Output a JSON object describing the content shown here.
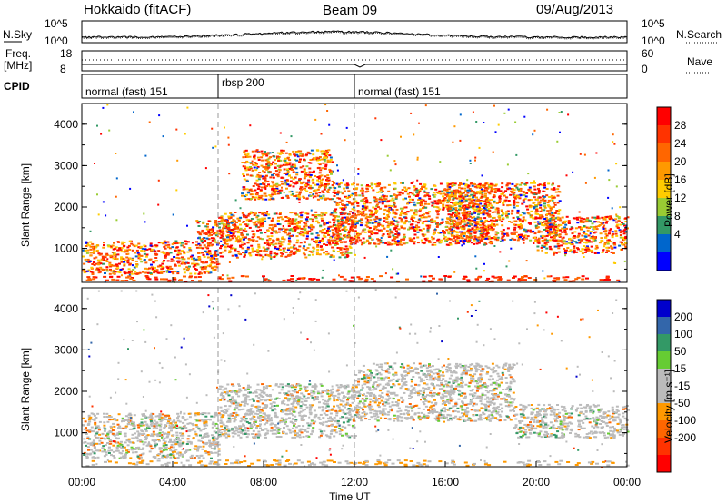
{
  "header": {
    "station": "Hokkaido (fitACF)",
    "beam": "Beam 09",
    "date": "09/Aug/2013"
  },
  "strips": {
    "noise": {
      "left_label": "N.Sky",
      "right_label": "N.Search",
      "left_ticks": [
        "10^5",
        "10^0"
      ],
      "right_ticks": [
        "10^5",
        "10^0"
      ]
    },
    "freq": {
      "left_label_1": "Freq.",
      "left_label_2": "[MHz]",
      "left_ticks": [
        "18",
        "8"
      ],
      "right_label": "Nave",
      "right_ticks": [
        "60",
        "0"
      ]
    },
    "cpid": {
      "label": "CPID",
      "segments": [
        {
          "name": "normal (fast) 151",
          "start_hour": 0
        },
        {
          "name": "rbsp 200",
          "start_hour": 6
        },
        {
          "name": "normal (fast) 151",
          "start_hour": 12
        }
      ]
    }
  },
  "axes": {
    "ylabel": "Slant Range [km]",
    "xlabel": "Time UT",
    "y_ticks": [
      "1000",
      "2000",
      "3000",
      "4000"
    ],
    "x_ticks": [
      "00:00",
      "04:00",
      "08:00",
      "12:00",
      "16:00",
      "20:00",
      "00:00"
    ]
  },
  "colorbars": {
    "power": {
      "label": "Power [dB]",
      "ticks": [
        "28",
        "24",
        "20",
        "16",
        "12",
        "8",
        "4"
      ],
      "colors": [
        "#ff0000",
        "#ff3300",
        "#ff6600",
        "#ff9900",
        "#ffcc00",
        "#99cc33",
        "#339966",
        "#0066cc",
        "#0000ff"
      ]
    },
    "velocity": {
      "label": "Velocity [m s⁻¹]",
      "ticks": [
        "200",
        "100",
        "50",
        "15",
        "-15",
        "-50",
        "-100",
        "-200"
      ],
      "colors": [
        "#0000cc",
        "#3366aa",
        "#339966",
        "#66cc33",
        "#bbbbbb",
        "#bbbbbb",
        "#ff9900",
        "#ff6600",
        "#ff3300",
        "#ff0000"
      ]
    }
  },
  "chart_data": [
    {
      "type": "heatmap",
      "name": "power",
      "x_range_hours": [
        0,
        24
      ],
      "y_range_km": [
        180,
        4500
      ],
      "bands": [
        {
          "t0": 0,
          "t1": 6,
          "r0": 400,
          "r1": 1200
        },
        {
          "t0": 5,
          "t1": 7,
          "r0": 1200,
          "r1": 1700
        },
        {
          "t0": 6,
          "t1": 12,
          "r0": 800,
          "r1": 1900
        },
        {
          "t0": 7,
          "t1": 11,
          "r0": 2200,
          "r1": 3400
        },
        {
          "t0": 11,
          "t1": 18,
          "r0": 1100,
          "r1": 2600
        },
        {
          "t0": 16,
          "t1": 21,
          "r0": 1200,
          "r1": 2600
        },
        {
          "t0": 20,
          "t1": 24,
          "r0": 900,
          "r1": 1800
        }
      ]
    },
    {
      "type": "heatmap",
      "name": "velocity",
      "x_range_hours": [
        0,
        24
      ],
      "y_range_km": [
        180,
        4500
      ],
      "bands": [
        {
          "t0": 0,
          "t1": 6,
          "r0": 400,
          "r1": 1500
        },
        {
          "t0": 6,
          "t1": 12,
          "r0": 900,
          "r1": 2200
        },
        {
          "t0": 12,
          "t1": 19,
          "r0": 1300,
          "r1": 2700
        },
        {
          "t0": 19,
          "t1": 24,
          "r0": 900,
          "r1": 1700
        }
      ]
    }
  ]
}
